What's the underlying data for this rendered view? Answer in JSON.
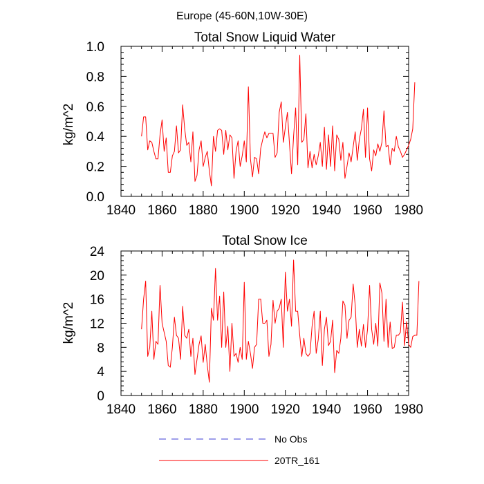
{
  "figure": {
    "title": "Europe (45-60N,10W-30E)"
  },
  "legend": {
    "items": [
      {
        "label": "No Obs",
        "color": "#3b3bd6",
        "style": "dashed"
      },
      {
        "label": "20TR_161",
        "color": "#ff0000",
        "style": "solid"
      }
    ]
  },
  "chart_data": [
    {
      "type": "line",
      "title": "Total Snow Liquid Water",
      "xlabel": "",
      "ylabel": "kg/m^2",
      "xlim": [
        1840,
        1980
      ],
      "ylim": [
        0.0,
        1.0
      ],
      "xticks": [
        1840,
        1860,
        1880,
        1900,
        1920,
        1940,
        1960,
        1980
      ],
      "yticks": [
        0.0,
        0.2,
        0.4,
        0.6,
        0.8,
        1.0
      ],
      "ytick_labels": [
        "0.0",
        "0.2",
        "0.4",
        "0.6",
        "0.8",
        "1.0"
      ],
      "x_start": 1850,
      "series": [
        {
          "name": "20TR_161",
          "color": "#ff0000",
          "values": [
            0.4,
            0.53,
            0.53,
            0.31,
            0.37,
            0.36,
            0.3,
            0.25,
            0.25,
            0.41,
            0.51,
            0.3,
            0.39,
            0.16,
            0.16,
            0.27,
            0.3,
            0.47,
            0.29,
            0.31,
            0.61,
            0.45,
            0.34,
            0.36,
            0.23,
            0.43,
            0.1,
            0.14,
            0.31,
            0.37,
            0.2,
            0.26,
            0.3,
            0.17,
            0.07,
            0.4,
            0.3,
            0.44,
            0.45,
            0.44,
            0.28,
            0.44,
            0.31,
            0.41,
            0.39,
            0.12,
            0.3,
            0.37,
            0.2,
            0.27,
            0.37,
            0.23,
            0.73,
            0.25,
            0.13,
            0.26,
            0.25,
            0.15,
            0.32,
            0.38,
            0.43,
            0.39,
            0.42,
            0.42,
            0.42,
            0.26,
            0.29,
            0.56,
            0.63,
            0.36,
            0.46,
            0.56,
            0.35,
            0.15,
            0.4,
            0.59,
            0.21,
            0.94,
            0.36,
            0.38,
            0.55,
            0.19,
            0.3,
            0.19,
            0.28,
            0.21,
            0.27,
            0.36,
            0.2,
            0.46,
            0.18,
            0.41,
            0.2,
            0.47,
            0.17,
            0.41,
            0.38,
            0.24,
            0.36,
            0.12,
            0.2,
            0.29,
            0.23,
            0.33,
            0.43,
            0.24,
            0.38,
            0.45,
            0.58,
            0.26,
            0.59,
            0.25,
            0.17,
            0.31,
            0.27,
            0.35,
            0.3,
            0.36,
            0.57,
            0.33,
            0.34,
            0.21,
            0.32,
            0.3,
            0.4,
            0.33,
            0.3,
            0.26,
            0.28,
            0.31,
            0.34,
            0.38,
            0.45,
            0.76
          ]
        }
      ]
    },
    {
      "type": "line",
      "title": "Total Snow Ice",
      "xlabel": "",
      "ylabel": "kg/m^2",
      "xlim": [
        1840,
        1980
      ],
      "ylim": [
        0,
        24
      ],
      "xticks": [
        1840,
        1860,
        1880,
        1900,
        1920,
        1940,
        1960,
        1980
      ],
      "yticks": [
        0,
        4,
        8,
        12,
        16,
        20,
        24
      ],
      "ytick_labels": [
        "0",
        "4",
        "8",
        "12",
        "16",
        "20",
        "24"
      ],
      "x_start": 1850,
      "series": [
        {
          "name": "20TR_161",
          "color": "#ff0000",
          "values": [
            11.0,
            16.0,
            19.0,
            6.5,
            8.0,
            14.0,
            6.0,
            9.0,
            8.5,
            18.3,
            12.0,
            10.5,
            9.0,
            5.0,
            4.7,
            8.0,
            13.0,
            10.0,
            9.5,
            6.0,
            14.8,
            10.0,
            9.5,
            11.0,
            6.5,
            9.5,
            3.5,
            6.0,
            8.5,
            9.9,
            5.5,
            8.5,
            5.0,
            2.2,
            14.5,
            12.5,
            21.1,
            12.5,
            16.5,
            8.0,
            17.2,
            8.0,
            11.5,
            4.0,
            12.0,
            6.5,
            7.0,
            5.5,
            8.0,
            6.0,
            18.8,
            6.0,
            9.0,
            7.0,
            4.5,
            8.0,
            8.5,
            16.0,
            16.0,
            12.0,
            12.0,
            12.5,
            6.5,
            8.5,
            15.8,
            12.0,
            14.0,
            14.5,
            16.0,
            8.0,
            20.5,
            14.0,
            16.0,
            11.5,
            22.5,
            14.0,
            14.0,
            10.0,
            6.5,
            9.5,
            7.0,
            6.5,
            7.0,
            11.5,
            14.0,
            7.0,
            9.3,
            14.0,
            5.0,
            11.0,
            13.0,
            8.3,
            9.0,
            12.5,
            3.8,
            7.5,
            7.0,
            9.5,
            15.7,
            15.0,
            9.5,
            12.5,
            13.0,
            18.5,
            15.0,
            8.0,
            11.0,
            8.2,
            11.8,
            8.0,
            11.0,
            18.3,
            11.0,
            8.5,
            12.0,
            8.2,
            18.7,
            17.0,
            9.0,
            16.0,
            8.0,
            12.2,
            7.8,
            8.0,
            10.0,
            10.0,
            10.5,
            15.5,
            8.3,
            12.3,
            8.5,
            8.0,
            9.8,
            10.0,
            10.0,
            19.0
          ]
        }
      ]
    }
  ]
}
